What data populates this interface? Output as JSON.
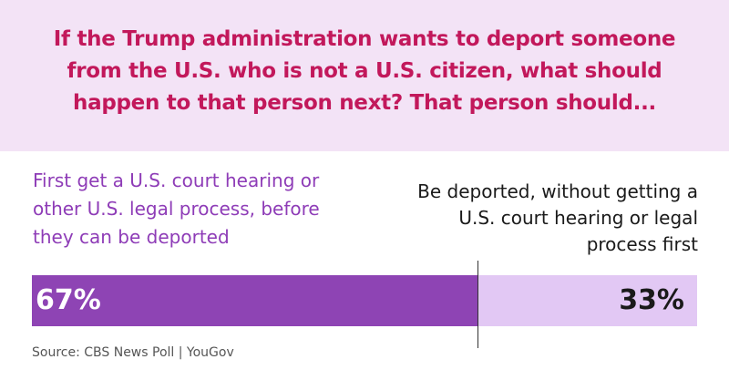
{
  "question": "If the Trump administration wants to deport someone from the U.S. who is not a U.S. citizen, what should happen to that person next? That person should...",
  "colors": {
    "header_background": "#f3e3f6",
    "question_text": "#c2185b",
    "left_segment": "#8e44b4",
    "right_segment": "#e2c8f4",
    "left_label_text": "#8e3cb7"
  },
  "chart_data": {
    "type": "bar",
    "orientation": "horizontal-stacked",
    "title": "If the Trump administration wants to deport someone from the U.S. who is not a U.S. citizen, what should happen to that person next? That person should...",
    "categories": [
      "First get a U.S. court hearing or other U.S. legal process, before they can be deported",
      "Be deported, without getting a U.S. court hearing or legal process first"
    ],
    "values": [
      67,
      33
    ],
    "value_labels": [
      "67%",
      "33%"
    ],
    "unit": "%",
    "xlim": [
      0,
      100
    ],
    "grid": false,
    "legend": "none"
  },
  "source": "Source: CBS News Poll | YouGov"
}
